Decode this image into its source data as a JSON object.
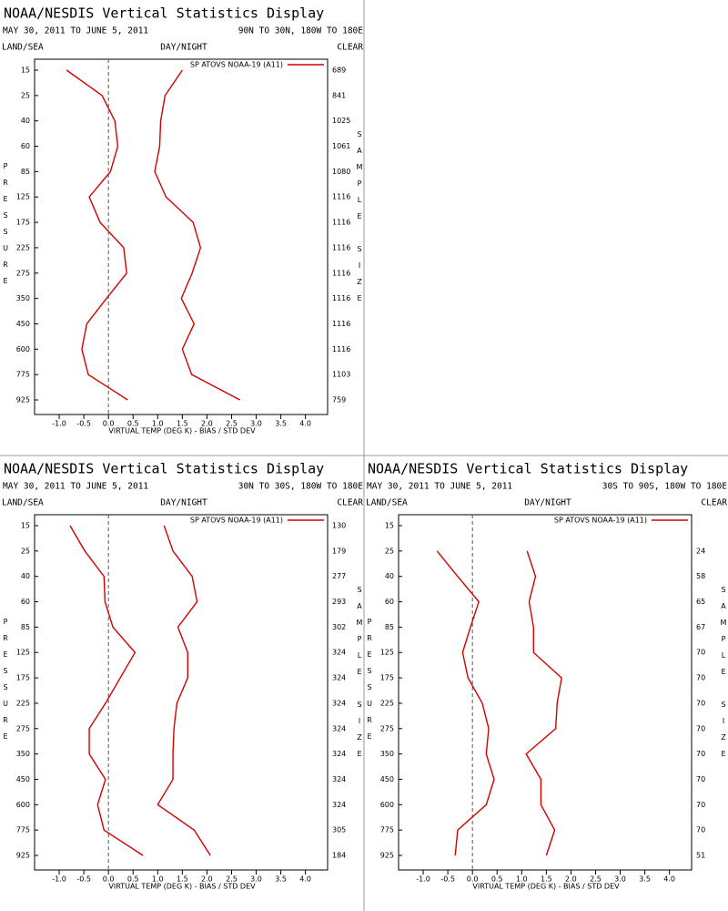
{
  "chart_data": [
    {
      "type": "line",
      "title": "NOAA/NESDIS Vertical Statistics Display",
      "subtitle": "MAY 30, 2011 TO JUNE 5, 2011",
      "region": "90N TO 30N, 180W TO 180E",
      "land_sea": "LAND/SEA",
      "day_night": "DAY/NIGHT",
      "clear": "CLEAR",
      "legend": "SP ATOVS NOAA-19 (A11)",
      "xlabel": "VIRTUAL TEMP (DEG K) - BIAS / STD DEV",
      "ylabel": "PRESSURE",
      "y2label": "SAMPLE SIZE",
      "categories": [
        "15",
        "25",
        "40",
        "60",
        "85",
        "125",
        "175",
        "225",
        "275",
        "350",
        "450",
        "600",
        "775",
        "925"
      ],
      "xlim": [
        -1.5,
        4.45
      ],
      "xticks": [
        {
          "value": -1,
          "label": "-1.0"
        },
        -0.5,
        {
          "value": 0,
          "label": "0.0"
        },
        0.5,
        {
          "value": 1,
          "label": "1.0"
        },
        1.5,
        {
          "value": 2,
          "label": "2.0"
        },
        2.5,
        {
          "value": 3,
          "label": "3.0"
        },
        3.5,
        {
          "value": 4,
          "label": "4.0"
        }
      ],
      "series": [
        {
          "color": "#d40000",
          "values": [
            -0.85,
            -0.13,
            0.13,
            0.19,
            0.04,
            -0.39,
            -0.17,
            0.31,
            0.37,
            -0.04,
            -0.44,
            -0.54,
            -0.41,
            0.39
          ]
        },
        {
          "color": "#d40000",
          "values": [
            1.5,
            1.15,
            1.06,
            1.04,
            0.94,
            1.17,
            1.72,
            1.87,
            1.7,
            1.48,
            1.74,
            1.5,
            1.69,
            2.67
          ]
        }
      ],
      "sample_size": [
        689,
        841,
        1025,
        1061,
        1080,
        1116,
        1116,
        1116,
        1116,
        1116,
        1116,
        1116,
        1103,
        759
      ]
    },
    {
      "type": "line",
      "title": "NOAA/NESDIS Vertical Statistics Display",
      "subtitle": "MAY 30, 2011 TO JUNE 5, 2011",
      "region": "30N TO 30S, 180W TO 180E",
      "land_sea": "LAND/SEA",
      "day_night": "DAY/NIGHT",
      "clear": "CLEAR",
      "legend": "SP ATOVS NOAA-19 (A11)",
      "xlabel": "VIRTUAL TEMP (DEG K) - BIAS / STD DEV",
      "ylabel": "PRESSURE",
      "y2label": "SAMPLE SIZE",
      "categories": [
        "15",
        "25",
        "40",
        "60",
        "85",
        "125",
        "175",
        "225",
        "275",
        "350",
        "450",
        "600",
        "775",
        "925"
      ],
      "xlim": [
        -1.5,
        4.45
      ],
      "xticks": [
        {
          "value": -1,
          "label": "-1.0"
        },
        -0.5,
        {
          "value": 0,
          "label": "0.0"
        },
        0.5,
        {
          "value": 1,
          "label": "1.0"
        },
        1.5,
        {
          "value": 2,
          "label": "2.0"
        },
        2.5,
        {
          "value": 3,
          "label": "3.0"
        },
        3.5,
        {
          "value": 4,
          "label": "4.0"
        }
      ],
      "series": [
        {
          "color": "#d40000",
          "values": [
            -0.78,
            -0.48,
            -0.09,
            -0.07,
            0.09,
            0.54,
            0.24,
            -0.06,
            -0.39,
            -0.39,
            -0.06,
            -0.22,
            -0.09,
            0.7
          ]
        },
        {
          "color": "#d40000",
          "values": [
            1.13,
            1.31,
            1.7,
            1.8,
            1.41,
            1.61,
            1.61,
            1.39,
            1.33,
            1.31,
            1.31,
            1.0,
            1.74,
            2.07
          ]
        }
      ],
      "sample_size": [
        130,
        179,
        277,
        293,
        302,
        324,
        324,
        324,
        324,
        324,
        324,
        324,
        305,
        184
      ]
    },
    {
      "type": "line",
      "title": "NOAA/NESDIS Vertical Statistics Display",
      "subtitle": "MAY 30, 2011 TO JUNE 5, 2011",
      "region": "30S TO 90S, 180W TO 180E",
      "land_sea": "LAND/SEA",
      "day_night": "DAY/NIGHT",
      "clear": "CLEAR",
      "legend": "SP ATOVS NOAA-19 (A11)",
      "xlabel": "VIRTUAL TEMP (DEG K) - BIAS / STD DEV",
      "ylabel": "PRESSURE",
      "y2label": "SAMPLE SIZE",
      "categories": [
        "15",
        "25",
        "40",
        "60",
        "85",
        "125",
        "175",
        "225",
        "275",
        "350",
        "450",
        "600",
        "775",
        "925"
      ],
      "xlim": [
        -1.5,
        4.45
      ],
      "xticks": [
        {
          "value": -1,
          "label": "-1.0"
        },
        -0.5,
        {
          "value": 0,
          "label": "0.0"
        },
        0.5,
        {
          "value": 1,
          "label": "1.0"
        },
        1.5,
        {
          "value": 2,
          "label": "2.0"
        },
        2.5,
        {
          "value": 3,
          "label": "3.0"
        },
        3.5,
        {
          "value": 4,
          "label": "4.0"
        }
      ],
      "series": [
        {
          "color": "#d40000",
          "values": [
            null,
            -0.72,
            -0.3,
            0.13,
            -0.04,
            -0.2,
            -0.09,
            0.2,
            0.33,
            0.28,
            0.44,
            0.28,
            -0.3,
            -0.35
          ]
        },
        {
          "color": "#d40000",
          "values": [
            null,
            1.11,
            1.28,
            1.15,
            1.24,
            1.24,
            1.81,
            1.72,
            1.69,
            1.09,
            1.39,
            1.39,
            1.67,
            1.5
          ]
        }
      ],
      "sample_size": [
        null,
        24,
        58,
        65,
        67,
        70,
        70,
        70,
        70,
        70,
        70,
        70,
        70,
        51
      ]
    }
  ]
}
